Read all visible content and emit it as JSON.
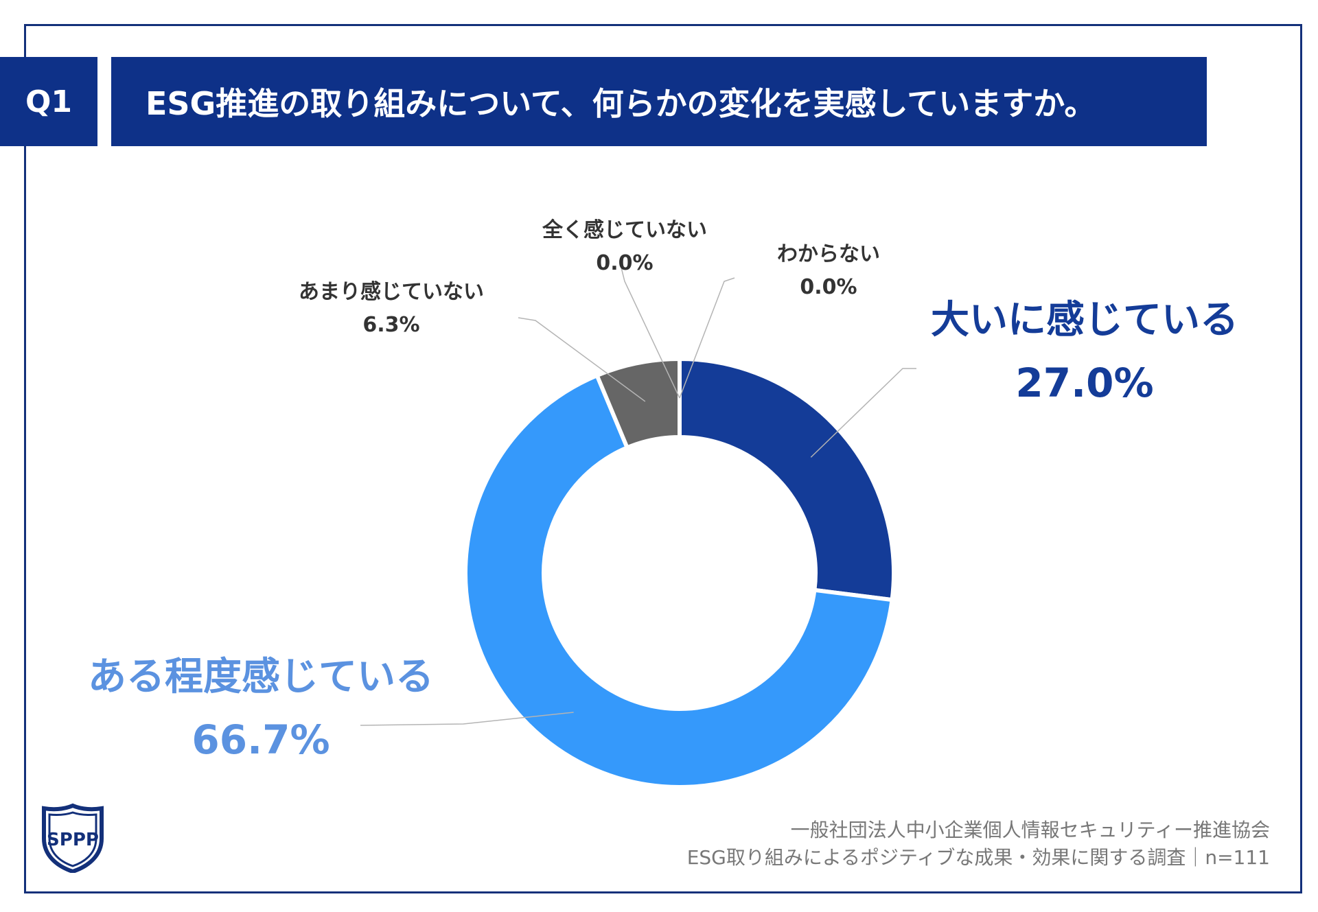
{
  "header": {
    "question_no": "Q1",
    "title": "ESG推進の取り組みについて、何らかの変化を実感していますか。"
  },
  "chart_data": {
    "type": "pie",
    "style": "donut",
    "categories": [
      "大いに感じている",
      "ある程度感じている",
      "あまり感じていない",
      "全く感じていない",
      "わからない"
    ],
    "values": [
      27.0,
      66.7,
      6.3,
      0.0,
      0.0
    ],
    "value_labels": [
      "27.0%",
      "66.7%",
      "6.3%",
      "0.0%",
      "0.0%"
    ],
    "colors": [
      "#143c98",
      "#3599fb",
      "#666666",
      "#999999",
      "#bbbbbb"
    ],
    "label_colors": [
      "#143c98",
      "#5b92e0",
      "#333333",
      "#333333",
      "#333333"
    ],
    "legend": "none"
  },
  "footer": {
    "line1": "一般社団法人中小企業個人情報セキュリティー推進協会",
    "line2": "ESG取り組みによるポジティブな成果・効果に関する調査｜n=111"
  },
  "logo": {
    "icon": "spp-shield-logo",
    "text": "SPPP"
  }
}
